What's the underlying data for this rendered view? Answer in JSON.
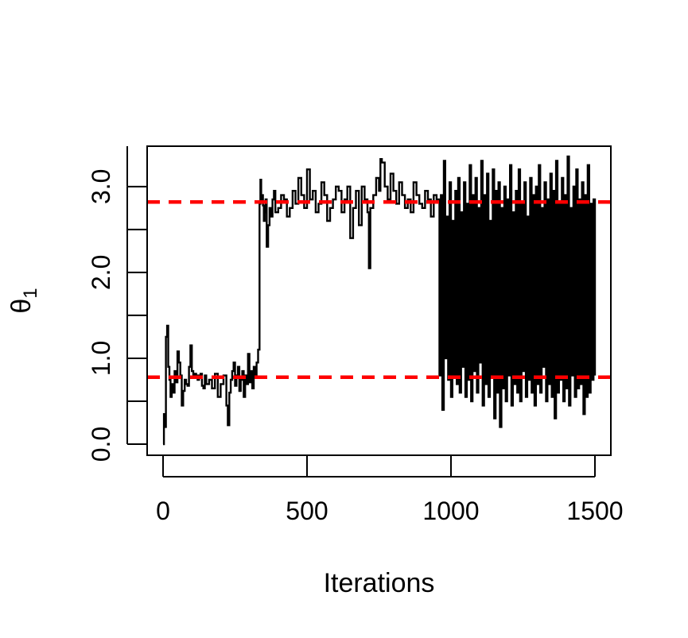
{
  "chart_data": {
    "type": "line",
    "title": "",
    "xlabel": "Iterations",
    "ylabel": {
      "symbol": "θ",
      "subscript": "1"
    },
    "xlim": [
      0,
      1500
    ],
    "ylim": [
      0,
      3.35
    ],
    "x_ticks": [
      0,
      500,
      1000,
      1500
    ],
    "x_tick_labels": [
      "0",
      "500",
      "1000",
      "1500"
    ],
    "y_ticks": [
      0,
      0.5,
      1.0,
      1.5,
      2.0,
      2.5,
      3.0
    ],
    "y_tick_labels": [
      "0.0",
      "",
      "1.0",
      "",
      "2.0",
      "",
      "3.0"
    ],
    "grid": false,
    "legend": "none",
    "trace_color": "#000000",
    "reference_color": "#ff0000",
    "reference_lines": [
      0.78,
      2.82
    ],
    "series": [
      {
        "style": "step",
        "x": [
          0,
          3,
          6,
          10,
          14,
          18,
          22,
          26,
          30,
          35,
          40,
          45,
          50,
          55,
          60,
          65,
          70,
          75,
          80,
          85,
          90,
          95,
          100,
          105,
          110,
          115,
          120,
          125,
          130,
          135,
          140,
          145,
          150,
          160,
          170,
          180,
          190,
          200,
          210,
          220,
          225,
          230,
          235,
          240,
          245,
          250,
          255,
          260,
          265,
          270,
          275,
          280,
          285,
          290,
          295,
          300,
          305,
          310,
          315,
          320,
          325,
          330,
          335,
          338,
          341,
          344,
          347,
          350,
          353,
          356,
          360,
          365,
          370,
          375,
          380,
          385,
          390,
          400,
          410,
          420,
          430,
          440,
          450,
          460,
          470,
          480,
          490,
          500,
          510,
          520,
          530,
          540,
          550,
          560,
          570,
          580,
          590,
          600,
          610,
          620,
          630,
          640,
          650,
          660,
          670,
          680,
          690,
          700,
          710,
          715,
          720,
          730,
          740,
          750,
          755,
          760,
          770,
          780,
          790,
          800,
          810,
          820,
          830,
          840,
          850,
          860,
          870,
          880,
          890,
          900,
          910,
          920,
          930,
          940,
          950,
          960,
          965,
          970,
          975,
          980,
          985,
          990,
          995,
          1000,
          1005,
          1010,
          1015,
          1020,
          1025,
          1030,
          1035,
          1040,
          1045,
          1050,
          1055,
          1060,
          1065,
          1070,
          1075,
          1080,
          1085,
          1090,
          1095,
          1100,
          1105,
          1110,
          1115,
          1120,
          1125,
          1130,
          1135,
          1140,
          1145,
          1150,
          1155,
          1160,
          1165,
          1170,
          1175,
          1180,
          1185,
          1190,
          1195,
          1200,
          1205,
          1210,
          1215,
          1220,
          1225,
          1230,
          1235,
          1240,
          1245,
          1250,
          1255,
          1260,
          1265,
          1270,
          1275,
          1280,
          1285,
          1290,
          1295,
          1300,
          1305,
          1310,
          1315,
          1320,
          1325,
          1330,
          1335,
          1340,
          1345,
          1350,
          1355,
          1360,
          1365,
          1370,
          1375,
          1380,
          1385,
          1390,
          1395,
          1400,
          1405,
          1410,
          1415,
          1420,
          1425,
          1430,
          1435,
          1440,
          1445,
          1450,
          1455,
          1460,
          1465,
          1470,
          1475,
          1480,
          1485,
          1490,
          1495,
          1500
        ],
        "y": [
          0.0,
          0.35,
          0.2,
          1.25,
          1.38,
          0.9,
          0.75,
          0.55,
          0.7,
          0.6,
          0.85,
          0.72,
          1.08,
          0.95,
          0.8,
          0.45,
          0.62,
          0.75,
          0.7,
          0.68,
          0.9,
          1.15,
          0.85,
          0.8,
          0.82,
          0.8,
          0.75,
          0.8,
          0.82,
          0.68,
          0.65,
          0.8,
          0.7,
          0.75,
          0.65,
          0.82,
          0.55,
          0.7,
          0.8,
          0.45,
          0.22,
          0.6,
          0.75,
          0.85,
          0.95,
          0.68,
          0.8,
          0.9,
          0.62,
          0.75,
          0.85,
          0.55,
          0.8,
          0.7,
          1.05,
          0.72,
          0.85,
          0.65,
          0.9,
          0.78,
          0.95,
          1.1,
          2.8,
          3.08,
          2.85,
          2.9,
          2.78,
          2.6,
          2.7,
          2.85,
          2.3,
          2.55,
          2.75,
          2.65,
          2.85,
          2.95,
          2.7,
          2.75,
          2.9,
          2.85,
          2.65,
          2.75,
          2.95,
          2.8,
          3.1,
          2.9,
          2.75,
          3.2,
          2.85,
          2.95,
          2.7,
          2.8,
          3.05,
          2.9,
          2.6,
          2.75,
          2.85,
          3.0,
          2.95,
          2.7,
          2.85,
          3.0,
          2.4,
          2.75,
          2.95,
          2.55,
          3.0,
          2.85,
          2.7,
          2.05,
          2.75,
          2.9,
          3.1,
          2.95,
          3.32,
          3.28,
          3.0,
          2.85,
          3.15,
          2.95,
          2.8,
          3.05,
          2.9,
          2.75,
          2.85,
          2.7,
          3.05,
          2.9,
          2.8,
          2.75,
          2.95,
          2.85,
          2.65,
          2.9,
          2.85,
          0.8,
          2.9,
          0.4,
          3.3,
          1.0,
          2.65,
          0.75,
          3.05,
          0.55,
          2.6,
          0.8,
          2.95,
          0.7,
          3.1,
          0.6,
          2.7,
          0.9,
          3.05,
          0.55,
          2.8,
          0.75,
          3.25,
          0.5,
          2.9,
          0.85,
          3.1,
          0.6,
          2.75,
          0.95,
          3.3,
          0.45,
          2.9,
          0.7,
          3.15,
          0.55,
          2.6,
          0.8,
          3.2,
          0.3,
          2.95,
          0.6,
          3.05,
          0.2,
          2.75,
          0.65,
          3.0,
          0.5,
          2.85,
          0.8,
          3.25,
          0.45,
          2.7,
          0.7,
          2.95,
          0.6,
          3.2,
          0.5,
          2.8,
          0.85,
          3.05,
          0.55,
          2.65,
          0.75,
          3.1,
          0.6,
          2.9,
          0.45,
          3.0,
          0.7,
          3.25,
          0.6,
          2.75,
          0.9,
          3.05,
          0.5,
          2.85,
          0.7,
          3.15,
          0.55,
          2.95,
          0.3,
          3.3,
          0.6,
          2.8,
          0.75,
          3.1,
          0.5,
          2.9,
          0.65,
          3.35,
          0.45,
          2.75,
          0.8,
          3.0,
          0.55,
          3.2,
          0.65,
          2.85,
          0.7,
          3.05,
          0.35,
          2.9,
          0.55,
          3.25,
          0.6,
          2.8,
          0.75,
          2.85,
          0.8
        ]
      }
    ]
  }
}
